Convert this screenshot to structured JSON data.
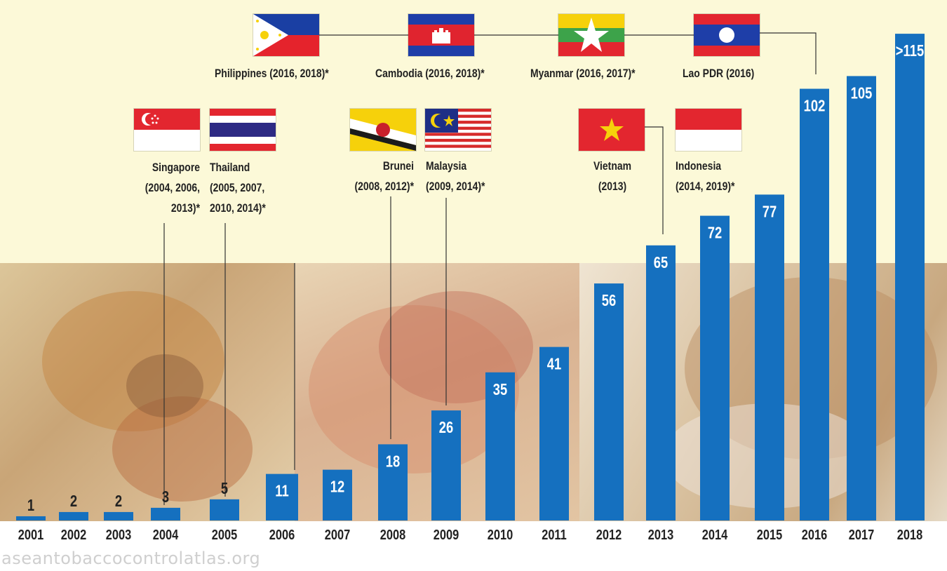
{
  "chart_data": {
    "type": "bar",
    "categories": [
      "2001",
      "2002",
      "2003",
      "2004",
      "2005",
      "2006",
      "2007",
      "2008",
      "2009",
      "2010",
      "2011",
      "2012",
      "2013",
      "2014",
      "2015",
      "2016",
      "2017",
      "2018"
    ],
    "values": [
      1,
      2,
      2,
      3,
      5,
      11,
      12,
      18,
      26,
      35,
      41,
      56,
      65,
      72,
      77,
      102,
      105,
      115
    ],
    "value_labels": [
      "1",
      "2",
      "2",
      "3",
      "5",
      "11",
      "12",
      "18",
      "26",
      "35",
      "41",
      "56",
      "65",
      "72",
      "77",
      "102",
      "105",
      ">115"
    ],
    "ylim": [
      0,
      118
    ],
    "bar_color": "#1570bf",
    "title": "",
    "xlabel": "",
    "ylabel": ""
  },
  "countries": {
    "philippines": {
      "label": "Philippines (2016, 2018)*",
      "flag": "philippines-flag"
    },
    "cambodia": {
      "label": "Cambodia (2016, 2018)*",
      "flag": "cambodia-flag"
    },
    "myanmar": {
      "label": "Myanmar (2016, 2017)*",
      "flag": "myanmar-flag"
    },
    "lao": {
      "label": "Lao PDR (2016)",
      "flag": "lao-flag"
    },
    "singapore": {
      "lines": [
        "Singapore",
        "(2004, 2006,",
        "2013)*"
      ],
      "flag": "singapore-flag"
    },
    "thailand": {
      "lines": [
        "Thailand",
        "(2005, 2007,",
        "2010, 2014)*"
      ],
      "flag": "thailand-flag"
    },
    "brunei": {
      "lines": [
        "Brunei",
        "(2008, 2012)*"
      ],
      "flag": "brunei-flag"
    },
    "malaysia": {
      "lines": [
        "Malaysia",
        "(2009, 2014)*"
      ],
      "flag": "malaysia-flag"
    },
    "vietnam": {
      "lines": [
        "Vietnam",
        "(2013)"
      ],
      "flag": "vietnam-flag"
    },
    "indonesia": {
      "lines": [
        "Indonesia",
        "(2014, 2019)*"
      ],
      "flag": "indonesia-flag"
    }
  },
  "source": "aseantobaccocontrolatlas.org"
}
